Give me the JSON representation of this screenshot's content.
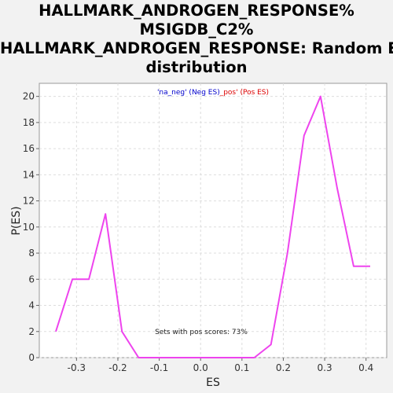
{
  "chart_data": {
    "type": "line",
    "title_lines": [
      "HALLMARK_ANDROGEN_RESPONSE%",
      "MSIGDB_C2%",
      "HALLMARK_ANDROGEN_RESPONSE: Random ES",
      "distribution"
    ],
    "xlabel": "ES",
    "ylabel": "P(ES)",
    "xlim": [
      -0.39,
      0.45
    ],
    "ylim": [
      0,
      21
    ],
    "x_ticks": [
      "-0.3",
      "-0.2",
      "-0.1",
      "0.0",
      "0.1",
      "0.2",
      "0.3",
      "0.4"
    ],
    "x_tick_values": [
      -0.3,
      -0.2,
      -0.1,
      0.0,
      0.1,
      0.2,
      0.3,
      0.4
    ],
    "y_ticks": [
      "0",
      "2",
      "4",
      "6",
      "8",
      "10",
      "12",
      "14",
      "16",
      "18",
      "20"
    ],
    "y_tick_values": [
      0,
      2,
      4,
      6,
      8,
      10,
      12,
      14,
      16,
      18,
      20
    ],
    "grid": true,
    "legend": {
      "placement": "top-center",
      "neg_text": "'na_neg' (Neg ES)",
      "separator": "_",
      "pos_text": "pos' (Pos ES)",
      "neg_color": "#0000cc",
      "pos_color": "#dd0000"
    },
    "annotation": "Sets with pos scores: 73%",
    "series": [
      {
        "color": "#ee44ee",
        "x": [
          -0.35,
          -0.31,
          -0.27,
          -0.23,
          -0.19,
          -0.15,
          -0.11,
          -0.07,
          -0.03,
          0.01,
          0.05,
          0.09,
          0.13,
          0.17,
          0.21,
          0.25,
          0.29,
          0.33,
          0.37,
          0.41
        ],
        "y": [
          2,
          6,
          6,
          11,
          2,
          0,
          0,
          0,
          0,
          0,
          0,
          0,
          0,
          1,
          8,
          17,
          20,
          13,
          7,
          7
        ]
      }
    ]
  }
}
